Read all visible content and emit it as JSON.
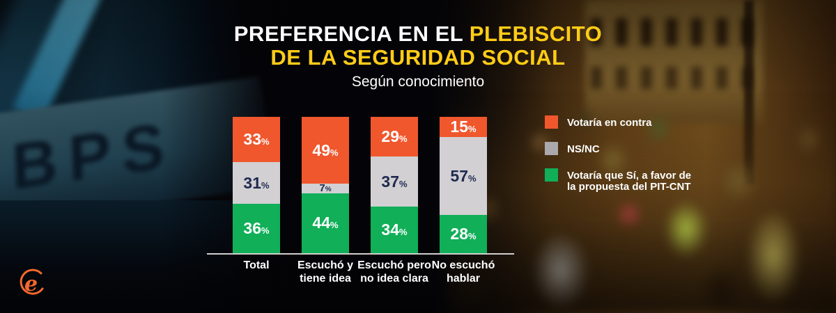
{
  "title": {
    "line1_white": "PREFERENCIA EN EL",
    "line1_yellow": "PLEBISCITO",
    "line2": "DE LA SEGURIDAD SOCIAL",
    "subtitle": "Según conocimiento"
  },
  "colors": {
    "accent_yellow": "#FFCC17",
    "orange": "#F0572D",
    "gray": "#D2D0D3",
    "green": "#10AF58",
    "navy_text": "#1F2A50",
    "logo_orange": "#F4682C"
  },
  "legend": {
    "items": [
      {
        "label_lines": [
          "Votaría en contra"
        ],
        "color": "#F0572D"
      },
      {
        "label_lines": [
          "NS/NC"
        ],
        "color": "#ABA9AC"
      },
      {
        "label_lines": [
          "Votaría que Sí, a favor de",
          "la propuesta del PIT-CNT"
        ],
        "color": "#10AF58"
      }
    ]
  },
  "chart_data": {
    "type": "bar",
    "stacked": true,
    "unit": "%",
    "ylim": [
      0,
      100
    ],
    "categories": [
      {
        "label_lines": [
          "Total"
        ]
      },
      {
        "label_lines": [
          "Escuchó y",
          "tiene idea"
        ]
      },
      {
        "label_lines": [
          "Escuchó pero",
          "no idea clara"
        ]
      },
      {
        "label_lines": [
          "No escuchó",
          "hablar"
        ]
      }
    ],
    "series": [
      {
        "name": "Votaría en contra",
        "color": "#F0572D",
        "text_color": "#FFFFFF",
        "values": [
          33,
          49,
          29,
          15
        ]
      },
      {
        "name": "NS/NC",
        "color": "#D2D0D3",
        "text_color": "#1F2A50",
        "values": [
          31,
          7,
          37,
          57
        ]
      },
      {
        "name": "Votaría que Sí, a favor de la propuesta del PIT-CNT",
        "color": "#10AF58",
        "text_color": "#FFFFFF",
        "values": [
          36,
          44,
          34,
          28
        ]
      }
    ]
  },
  "background": {
    "building_letters": "BPS"
  },
  "logo": {
    "letter": "e"
  }
}
